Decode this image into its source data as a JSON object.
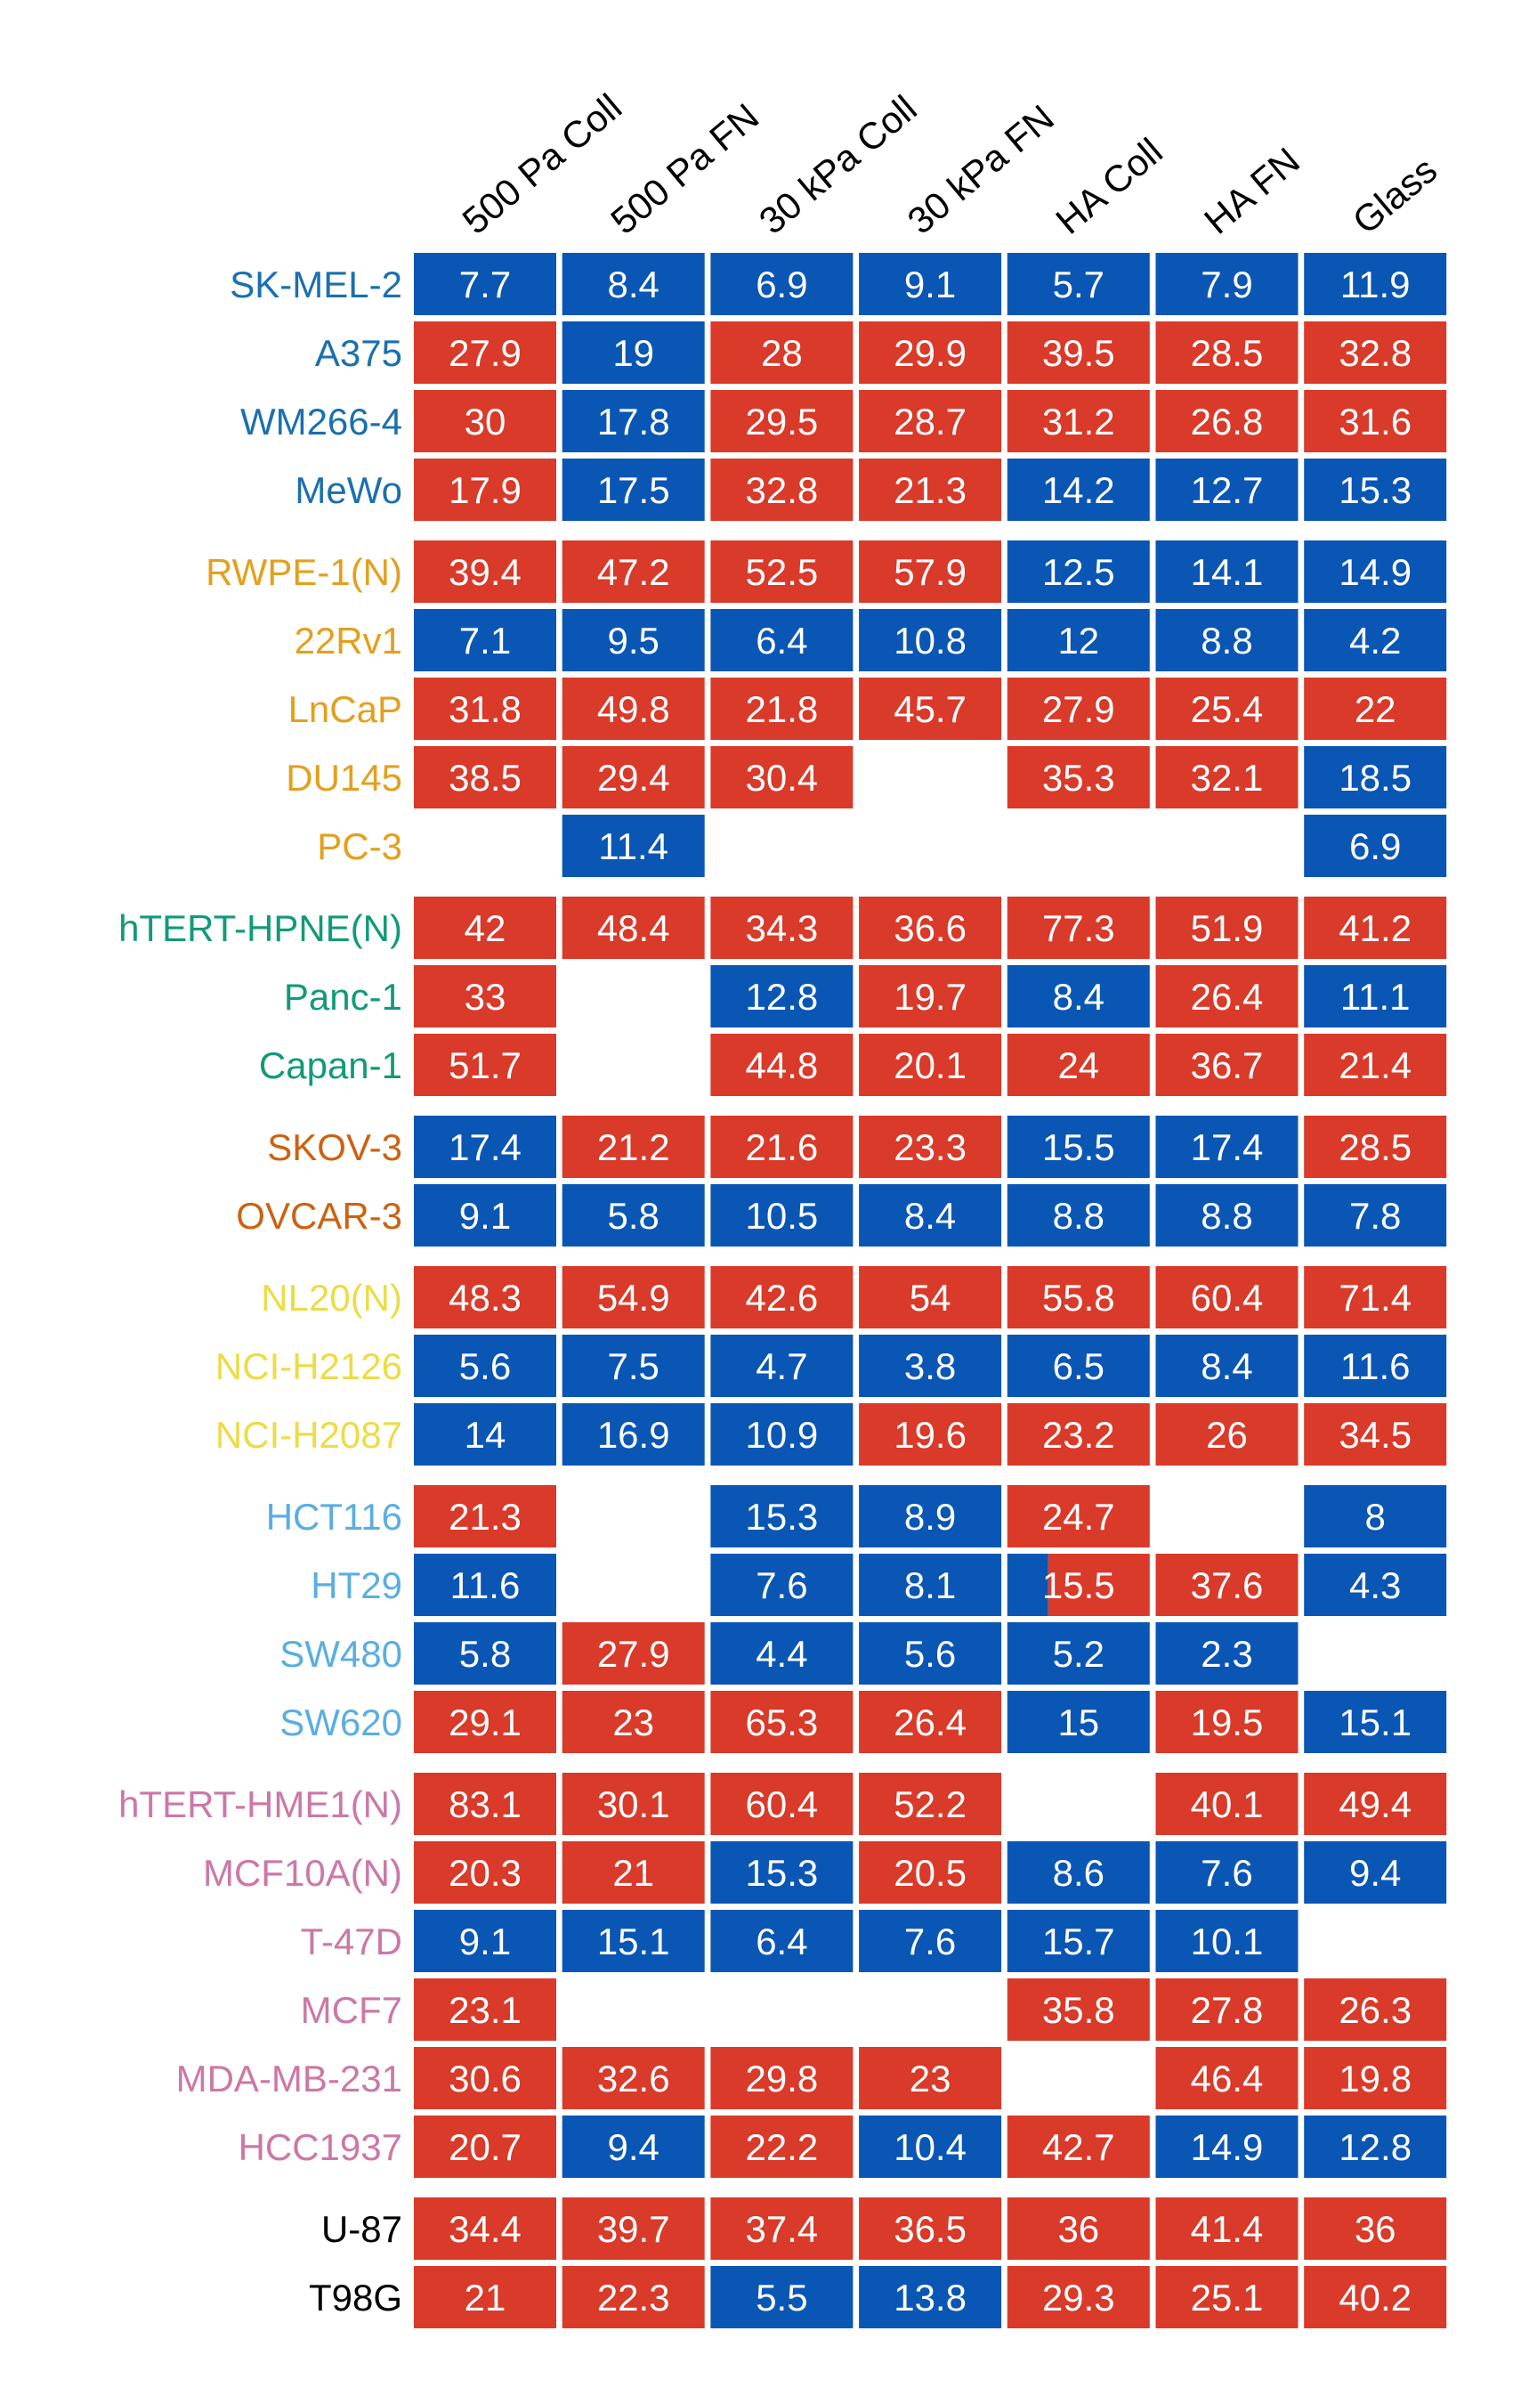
{
  "chart_data": {
    "type": "heatmap",
    "columns": [
      "500 Pa Coll",
      "500 Pa FN",
      "30 kPa Coll",
      "30 kPa FN",
      "HA Coll",
      "HA FN",
      "Glass"
    ],
    "colors": {
      "high": "#d93a29",
      "low": "#0a56b5",
      "cell_text": "#ffffff"
    },
    "groups": [
      {
        "color": "#1b6faf",
        "rows": [
          {
            "label": "SK-MEL-2",
            "values": [
              7.7,
              8.4,
              6.9,
              9.1,
              5.7,
              7.9,
              11.9
            ],
            "tones": [
              "low",
              "low",
              "low",
              "low",
              "low",
              "low",
              "low"
            ]
          },
          {
            "label": "A375",
            "values": [
              27.9,
              19,
              28,
              29.9,
              39.5,
              28.5,
              32.8
            ],
            "tones": [
              "high",
              "low",
              "high",
              "high",
              "high",
              "high",
              "high"
            ]
          },
          {
            "label": "WM266-4",
            "values": [
              30,
              17.8,
              29.5,
              28.7,
              31.2,
              26.8,
              31.6
            ],
            "tones": [
              "high",
              "low",
              "high",
              "high",
              "high",
              "high",
              "high"
            ]
          },
          {
            "label": "MeWo",
            "values": [
              17.9,
              17.5,
              32.8,
              21.3,
              14.2,
              12.7,
              15.3
            ],
            "tones": [
              "high",
              "low",
              "high",
              "high",
              "low",
              "low",
              "low"
            ]
          }
        ]
      },
      {
        "color": "#e3a01e",
        "rows": [
          {
            "label": "RWPE-1(N)",
            "values": [
              39.4,
              47.2,
              52.5,
              57.9,
              12.5,
              14.1,
              14.9
            ],
            "tones": [
              "high",
              "high",
              "high",
              "high",
              "low",
              "low",
              "low"
            ]
          },
          {
            "label": "22Rv1",
            "values": [
              7.1,
              9.5,
              6.4,
              10.8,
              12,
              8.8,
              4.2
            ],
            "tones": [
              "low",
              "low",
              "low",
              "low",
              "low",
              "low",
              "low"
            ]
          },
          {
            "label": "LnCaP",
            "values": [
              31.8,
              49.8,
              21.8,
              45.7,
              27.9,
              25.4,
              22
            ],
            "tones": [
              "high",
              "high",
              "high",
              "high",
              "high",
              "high",
              "high"
            ]
          },
          {
            "label": "DU145",
            "values": [
              38.5,
              29.4,
              30.4,
              null,
              35.3,
              32.1,
              18.5
            ],
            "tones": [
              "high",
              "high",
              "high",
              null,
              "high",
              "high",
              "low"
            ]
          },
          {
            "label": "PC-3",
            "values": [
              null,
              11.4,
              null,
              null,
              null,
              null,
              6.9
            ],
            "tones": [
              null,
              "low",
              null,
              null,
              null,
              null,
              "low"
            ]
          }
        ]
      },
      {
        "color": "#129a79",
        "rows": [
          {
            "label": "hTERT-HPNE(N)",
            "values": [
              42,
              48.4,
              34.3,
              36.6,
              77.3,
              51.9,
              41.2
            ],
            "tones": [
              "high",
              "high",
              "high",
              "high",
              "high",
              "high",
              "high"
            ]
          },
          {
            "label": "Panc-1",
            "values": [
              33,
              null,
              12.8,
              19.7,
              8.4,
              26.4,
              11.1
            ],
            "tones": [
              "high",
              null,
              "low",
              "high",
              "low",
              "high",
              "low"
            ]
          },
          {
            "label": "Capan-1",
            "values": [
              51.7,
              null,
              44.8,
              20.1,
              24,
              36.7,
              21.4
            ],
            "tones": [
              "high",
              null,
              "high",
              "high",
              "high",
              "high",
              "high"
            ]
          }
        ]
      },
      {
        "color": "#cc6211",
        "rows": [
          {
            "label": "SKOV-3",
            "values": [
              17.4,
              21.2,
              21.6,
              23.3,
              15.5,
              17.4,
              28.5
            ],
            "tones": [
              "low",
              "high",
              "high",
              "high",
              "low",
              "low",
              "high"
            ]
          },
          {
            "label": "OVCAR-3",
            "values": [
              9.1,
              5.8,
              10.5,
              8.4,
              8.8,
              8.8,
              7.8
            ],
            "tones": [
              "low",
              "low",
              "low",
              "low",
              "low",
              "low",
              "low"
            ]
          }
        ]
      },
      {
        "color": "#ecdc47",
        "rows": [
          {
            "label": "NL20(N)",
            "values": [
              48.3,
              54.9,
              42.6,
              54,
              55.8,
              60.4,
              71.4
            ],
            "tones": [
              "high",
              "high",
              "high",
              "high",
              "high",
              "high",
              "high"
            ]
          },
          {
            "label": "NCI-H2126",
            "values": [
              5.6,
              7.5,
              4.7,
              3.8,
              6.5,
              8.4,
              11.6
            ],
            "tones": [
              "low",
              "low",
              "low",
              "low",
              "low",
              "low",
              "low"
            ]
          },
          {
            "label": "NCI-H2087",
            "values": [
              14,
              16.9,
              10.9,
              19.6,
              23.2,
              26,
              34.5
            ],
            "tones": [
              "low",
              "low",
              "low",
              "high",
              "high",
              "high",
              "high"
            ]
          }
        ]
      },
      {
        "color": "#5aaee0",
        "rows": [
          {
            "label": "HCT116",
            "values": [
              21.3,
              null,
              15.3,
              8.9,
              24.7,
              null,
              8
            ],
            "tones": [
              "high",
              null,
              "low",
              "low",
              "high",
              null,
              "low"
            ]
          },
          {
            "label": "HT29",
            "values": [
              11.6,
              null,
              7.6,
              8.1,
              15.5,
              37.6,
              4.3
            ],
            "tones": [
              "low",
              null,
              "low",
              "low",
              "split",
              "high",
              "low"
            ]
          },
          {
            "label": "SW480",
            "values": [
              5.8,
              27.9,
              4.4,
              5.6,
              5.2,
              2.3,
              null
            ],
            "tones": [
              "low",
              "high",
              "low",
              "low",
              "low",
              "low",
              null
            ]
          },
          {
            "label": "SW620",
            "values": [
              29.1,
              23,
              65.3,
              26.4,
              15,
              19.5,
              15.1
            ],
            "tones": [
              "high",
              "high",
              "high",
              "high",
              "low",
              "high",
              "low"
            ]
          }
        ]
      },
      {
        "color": "#cc78a6",
        "rows": [
          {
            "label": "hTERT-HME1(N)",
            "values": [
              83.1,
              30.1,
              60.4,
              52.2,
              null,
              40.1,
              49.4
            ],
            "tones": [
              "high",
              "high",
              "high",
              "high",
              null,
              "high",
              "high"
            ]
          },
          {
            "label": "MCF10A(N)",
            "values": [
              20.3,
              21,
              15.3,
              20.5,
              8.6,
              7.6,
              9.4
            ],
            "tones": [
              "high",
              "high",
              "low",
              "high",
              "low",
              "low",
              "low"
            ]
          },
          {
            "label": "T-47D",
            "values": [
              9.1,
              15.1,
              6.4,
              7.6,
              15.7,
              10.1,
              null
            ],
            "tones": [
              "low",
              "low",
              "low",
              "low",
              "low",
              "low",
              null
            ]
          },
          {
            "label": "MCF7",
            "values": [
              23.1,
              null,
              null,
              null,
              35.8,
              27.8,
              26.3
            ],
            "tones": [
              "high",
              null,
              null,
              null,
              "high",
              "high",
              "high"
            ]
          },
          {
            "label": "MDA-MB-231",
            "values": [
              30.6,
              32.6,
              29.8,
              23,
              null,
              46.4,
              19.8
            ],
            "tones": [
              "high",
              "high",
              "high",
              "high",
              null,
              "high",
              "high"
            ]
          },
          {
            "label": "HCC1937",
            "values": [
              20.7,
              9.4,
              22.2,
              10.4,
              42.7,
              14.9,
              12.8
            ],
            "tones": [
              "high",
              "low",
              "high",
              "low",
              "high",
              "low",
              "low"
            ]
          }
        ]
      },
      {
        "color": "#000000",
        "rows": [
          {
            "label": "U-87",
            "values": [
              34.4,
              39.7,
              37.4,
              36.5,
              36,
              41.4,
              36
            ],
            "tones": [
              "high",
              "high",
              "high",
              "high",
              "high",
              "high",
              "high"
            ]
          },
          {
            "label": "T98G",
            "values": [
              21,
              22.3,
              5.5,
              13.8,
              29.3,
              25.1,
              40.2
            ],
            "tones": [
              "high",
              "high",
              "low",
              "low",
              "high",
              "high",
              "high"
            ]
          }
        ]
      }
    ]
  }
}
